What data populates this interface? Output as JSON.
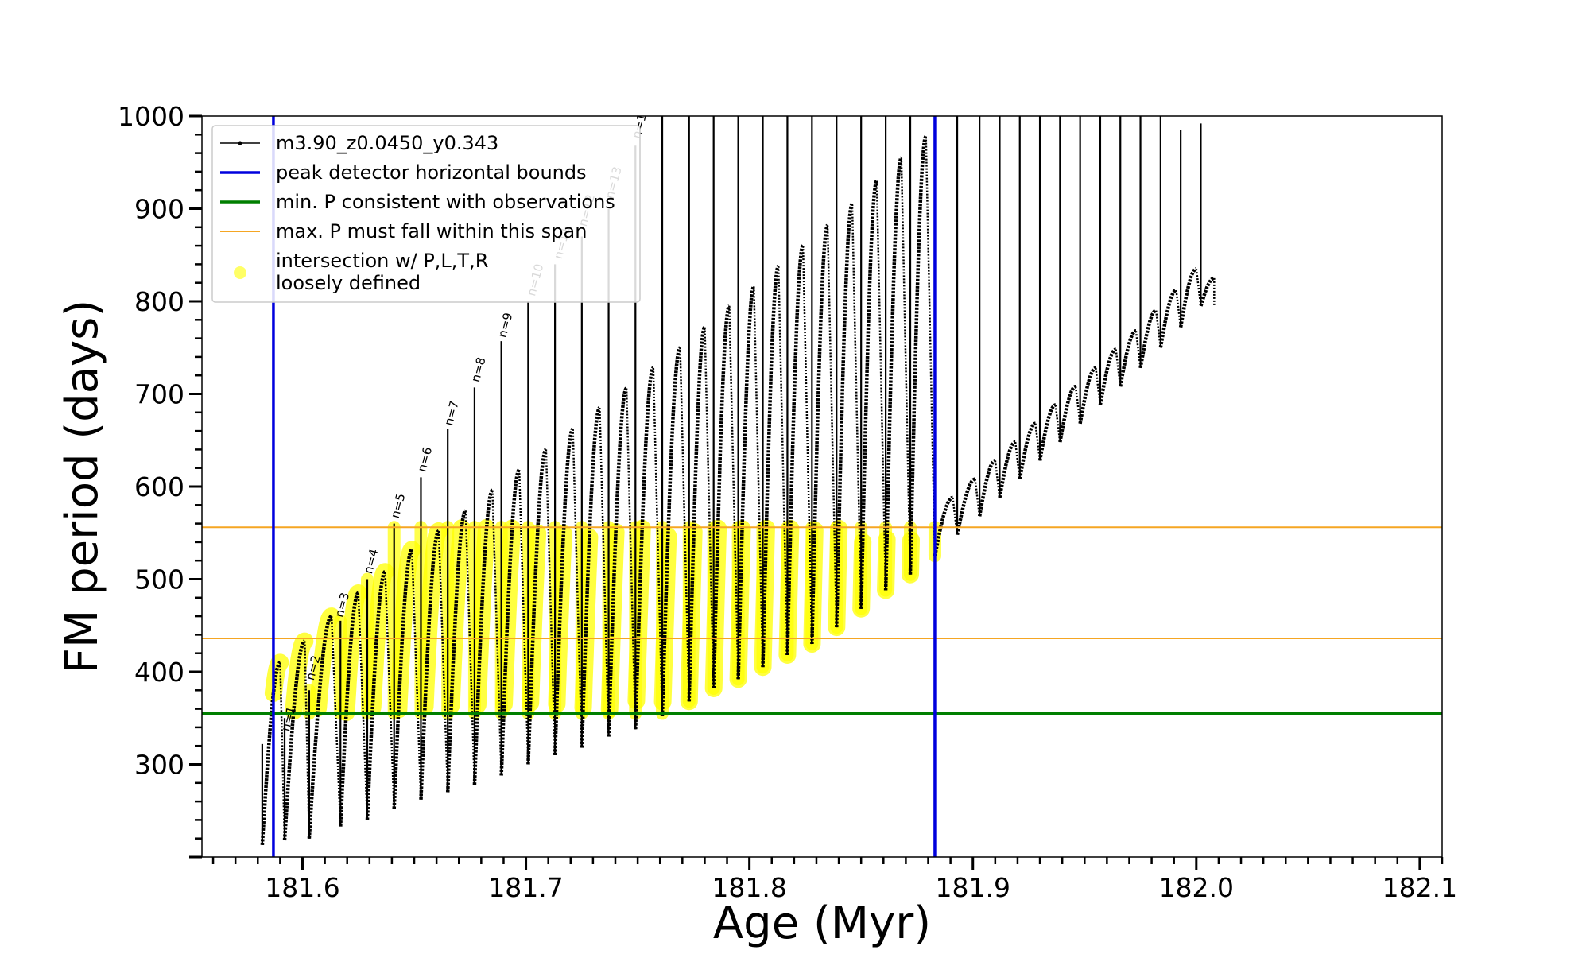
{
  "chart_data": {
    "type": "line",
    "xlabel": "Age (Myr)",
    "ylabel": "FM period (days)",
    "xlim": [
      181.555,
      182.11
    ],
    "ylim": [
      200,
      1000
    ],
    "x_ticks": [
      "181.6",
      "181.7",
      "181.8",
      "181.9",
      "182.0",
      "182.1"
    ],
    "y_ticks": [
      "300",
      "400",
      "500",
      "600",
      "700",
      "800",
      "900",
      "1000"
    ],
    "grid": false,
    "legend_position": "top-left",
    "series": [
      {
        "name": "m3.90_z0.0450_y0.343",
        "color": "#000000",
        "description_of_shape": "thermal-pulse sawtooth cycles",
        "cycle_minima": [
          [
            181.582,
            213
          ],
          [
            181.592,
            218
          ],
          [
            181.603,
            220
          ],
          [
            181.617,
            233
          ],
          [
            181.629,
            240
          ],
          [
            181.641,
            252
          ],
          [
            181.653,
            262
          ],
          [
            181.665,
            270
          ],
          [
            181.677,
            278
          ],
          [
            181.689,
            288
          ],
          [
            181.701,
            300
          ],
          [
            181.713,
            310
          ],
          [
            181.725,
            318
          ],
          [
            181.737,
            330
          ],
          [
            181.749,
            338
          ],
          [
            181.761,
            352
          ],
          [
            181.773,
            368
          ],
          [
            181.784,
            382
          ],
          [
            181.795,
            392
          ],
          [
            181.806,
            405
          ],
          [
            181.817,
            418
          ],
          [
            181.828,
            430
          ],
          [
            181.839,
            448
          ],
          [
            181.85,
            468
          ],
          [
            181.861,
            488
          ],
          [
            181.872,
            505
          ],
          [
            181.883,
            525
          ],
          [
            181.893,
            548
          ],
          [
            181.903,
            568
          ],
          [
            181.912,
            588
          ],
          [
            181.921,
            608
          ],
          [
            181.93,
            628
          ],
          [
            181.939,
            648
          ],
          [
            181.948,
            668
          ],
          [
            181.957,
            688
          ],
          [
            181.966,
            708
          ],
          [
            181.975,
            728
          ],
          [
            181.984,
            750
          ],
          [
            181.993,
            772
          ],
          [
            182.002,
            795
          ]
        ],
        "cycle_arc_peaks": [
          [
            181.59,
            410
          ],
          [
            181.601,
            433
          ],
          [
            181.613,
            460
          ],
          [
            181.625,
            485
          ],
          [
            181.637,
            508
          ],
          [
            181.649,
            532
          ],
          [
            181.661,
            552
          ],
          [
            181.673,
            574
          ],
          [
            181.685,
            596
          ],
          [
            181.697,
            618
          ],
          [
            181.709,
            640
          ],
          [
            181.721,
            662
          ],
          [
            181.733,
            685
          ],
          [
            181.745,
            706
          ],
          [
            181.757,
            728
          ],
          [
            181.769,
            750
          ],
          [
            181.78,
            772
          ],
          [
            181.791,
            795
          ],
          [
            181.802,
            816
          ],
          [
            181.813,
            838
          ],
          [
            181.824,
            860
          ],
          [
            181.835,
            882
          ],
          [
            181.846,
            905
          ],
          [
            181.857,
            930
          ],
          [
            181.868,
            955
          ],
          [
            181.879,
            978
          ]
        ],
        "cycle_spike_tops": [
          [
            181.582,
            322
          ],
          [
            181.592,
            350
          ],
          [
            181.603,
            380
          ],
          [
            181.617,
            455
          ],
          [
            181.629,
            500
          ],
          [
            181.641,
            560
          ],
          [
            181.653,
            610
          ],
          [
            181.665,
            662
          ],
          [
            181.677,
            707
          ],
          [
            181.689,
            757
          ],
          [
            181.701,
            800
          ],
          [
            181.713,
            840
          ],
          [
            181.725,
            870
          ],
          [
            181.737,
            900
          ],
          [
            181.749,
            968
          ],
          [
            181.761,
            1000
          ],
          [
            181.773,
            1000
          ],
          [
            181.784,
            1000
          ],
          [
            181.795,
            1000
          ],
          [
            181.806,
            1000
          ],
          [
            181.817,
            1000
          ],
          [
            181.828,
            1000
          ],
          [
            181.839,
            1000
          ],
          [
            181.85,
            1000
          ],
          [
            181.861,
            1000
          ],
          [
            181.872,
            1000
          ],
          [
            181.883,
            1000
          ],
          [
            181.893,
            1000
          ],
          [
            181.903,
            1000
          ],
          [
            181.912,
            1000
          ],
          [
            181.921,
            1000
          ],
          [
            181.93,
            1000
          ],
          [
            181.939,
            1000
          ],
          [
            181.948,
            1000
          ],
          [
            181.957,
            1000
          ],
          [
            181.966,
            1000
          ],
          [
            181.975,
            1000
          ],
          [
            181.984,
            1000
          ],
          [
            181.993,
            985
          ],
          [
            182.002,
            992
          ]
        ]
      },
      {
        "name": "peak detector horizontal bounds",
        "color": "#0000dd",
        "x_values": [
          181.587,
          181.883
        ]
      },
      {
        "name": "min. P consistent with observations",
        "color": "#007f00",
        "y_value": 355
      },
      {
        "name": "max. P must fall within this span",
        "color": "#f5a623",
        "y_values": [
          436,
          556
        ]
      },
      {
        "name": "intersection w/ P,L,T,R\nloosely defined",
        "color": "#ffff00",
        "description_of_shape": "highlighted portions of the track where 355 <= P <= 556 within the detector bounds"
      }
    ],
    "pulse_labels": [
      {
        "text": "n=1",
        "x": 181.594,
        "y": 335
      },
      {
        "text": "n=2",
        "x": 181.605,
        "y": 390
      },
      {
        "text": "n=3",
        "x": 181.618,
        "y": 458
      },
      {
        "text": "n=4",
        "x": 181.631,
        "y": 505
      },
      {
        "text": "n=5",
        "x": 181.643,
        "y": 565
      },
      {
        "text": "n=6",
        "x": 181.655,
        "y": 615
      },
      {
        "text": "n=7",
        "x": 181.667,
        "y": 665
      },
      {
        "text": "n=8",
        "x": 181.679,
        "y": 712
      },
      {
        "text": "n=9",
        "x": 181.691,
        "y": 760
      },
      {
        "text": "n=10",
        "x": 181.704,
        "y": 805
      },
      {
        "text": "n=11",
        "x": 181.716,
        "y": 845
      },
      {
        "text": "n=12",
        "x": 181.727,
        "y": 880
      },
      {
        "text": "n=13",
        "x": 181.739,
        "y": 910
      },
      {
        "text": "n=14",
        "x": 181.751,
        "y": 975
      }
    ]
  }
}
